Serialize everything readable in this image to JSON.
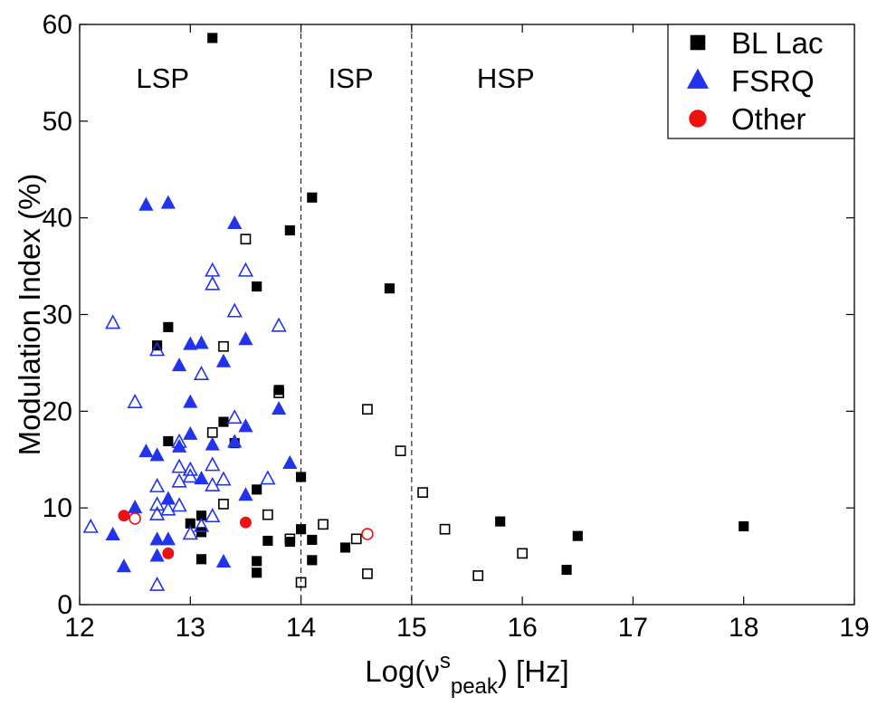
{
  "chart_data": {
    "type": "scatter",
    "xlabel": "Log(ν",
    "xlabel_sup": "s",
    "xlabel_sub": "peak",
    "xlabel_unit": ") [Hz]",
    "ylabel": "Modulation Index (%)",
    "xlim": [
      12,
      19
    ],
    "ylim": [
      0,
      60
    ],
    "xticks": [
      "12",
      "13",
      "14",
      "15",
      "16",
      "17",
      "18",
      "19"
    ],
    "yticks": [
      "0",
      "10",
      "20",
      "30",
      "40",
      "50",
      "60"
    ],
    "vlines": [
      14,
      15
    ],
    "regions": [
      {
        "label": "LSP",
        "x": 12.75,
        "y": 54.5
      },
      {
        "label": "ISP",
        "x": 14.45,
        "y": 54.5
      },
      {
        "label": "HSP",
        "x": 15.85,
        "y": 54.5
      }
    ],
    "legend": [
      {
        "label": "BL Lac",
        "marker": "square",
        "color": "#000000"
      },
      {
        "label": "FSRQ",
        "marker": "triangle",
        "color": "#2233ee"
      },
      {
        "label": "Other",
        "marker": "circle",
        "color": "#ee1111"
      }
    ],
    "series": [
      {
        "name": "BL Lac",
        "marker": "square",
        "color": "#000000",
        "filled": [
          [
            13.2,
            58.6
          ],
          [
            14.1,
            42.1
          ],
          [
            13.9,
            38.7
          ],
          [
            14.8,
            32.7
          ],
          [
            13.6,
            32.9
          ],
          [
            12.8,
            28.7
          ],
          [
            12.7,
            26.8
          ],
          [
            13.8,
            22.2
          ],
          [
            13.3,
            18.9
          ],
          [
            13.4,
            16.7
          ],
          [
            12.8,
            16.9
          ],
          [
            14.0,
            13.2
          ],
          [
            13.6,
            11.9
          ],
          [
            13.1,
            9.2
          ],
          [
            13.0,
            8.4
          ],
          [
            13.1,
            7.5
          ],
          [
            13.1,
            4.7
          ],
          [
            13.6,
            4.5
          ],
          [
            13.6,
            3.3
          ],
          [
            13.7,
            6.6
          ],
          [
            13.9,
            6.5
          ],
          [
            14.0,
            7.8
          ],
          [
            14.1,
            6.7
          ],
          [
            14.1,
            4.6
          ],
          [
            14.4,
            5.9
          ],
          [
            15.8,
            8.6
          ],
          [
            16.5,
            7.1
          ],
          [
            16.4,
            3.6
          ],
          [
            18.0,
            8.1
          ]
        ],
        "open": [
          [
            13.5,
            37.8
          ],
          [
            13.3,
            26.7
          ],
          [
            13.8,
            21.9
          ],
          [
            13.2,
            17.8
          ],
          [
            13.3,
            10.4
          ],
          [
            13.7,
            9.3
          ],
          [
            13.9,
            6.8
          ],
          [
            14.0,
            2.3
          ],
          [
            14.2,
            8.3
          ],
          [
            14.5,
            6.8
          ],
          [
            14.6,
            20.2
          ],
          [
            14.6,
            3.2
          ],
          [
            14.9,
            15.9
          ],
          [
            15.1,
            11.6
          ],
          [
            15.3,
            7.8
          ],
          [
            15.6,
            3.0
          ],
          [
            16.0,
            5.3
          ]
        ]
      },
      {
        "name": "FSRQ",
        "marker": "triangle",
        "color": "#2233ee",
        "filled": [
          [
            12.6,
            41.3
          ],
          [
            12.8,
            41.5
          ],
          [
            13.4,
            39.4
          ],
          [
            12.9,
            24.7
          ],
          [
            13.0,
            26.9
          ],
          [
            13.1,
            27.0
          ],
          [
            13.3,
            25.1
          ],
          [
            13.5,
            27.4
          ],
          [
            13.8,
            20.2
          ],
          [
            13.0,
            20.9
          ],
          [
            13.5,
            18.4
          ],
          [
            12.6,
            15.8
          ],
          [
            12.7,
            15.4
          ],
          [
            12.9,
            16.3
          ],
          [
            13.0,
            17.6
          ],
          [
            13.2,
            16.5
          ],
          [
            13.4,
            16.8
          ],
          [
            13.9,
            14.6
          ],
          [
            13.1,
            13.0
          ],
          [
            13.5,
            11.3
          ],
          [
            12.5,
            10.0
          ],
          [
            12.8,
            10.9
          ],
          [
            12.7,
            6.7
          ],
          [
            12.8,
            6.7
          ],
          [
            12.7,
            5.0
          ],
          [
            12.3,
            7.2
          ],
          [
            12.4,
            3.9
          ],
          [
            13.3,
            4.4
          ]
        ],
        "open": [
          [
            12.3,
            29.1
          ],
          [
            12.5,
            20.9
          ],
          [
            12.7,
            26.3
          ],
          [
            13.1,
            23.8
          ],
          [
            13.2,
            34.5
          ],
          [
            13.2,
            33.1
          ],
          [
            13.5,
            34.5
          ],
          [
            13.4,
            30.3
          ],
          [
            13.8,
            28.8
          ],
          [
            13.4,
            19.3
          ],
          [
            13.2,
            14.4
          ],
          [
            12.9,
            16.8
          ],
          [
            12.9,
            14.2
          ],
          [
            12.9,
            12.7
          ],
          [
            13.0,
            13.9
          ],
          [
            13.0,
            13.2
          ],
          [
            13.3,
            12.9
          ],
          [
            13.2,
            12.3
          ],
          [
            13.7,
            13.0
          ],
          [
            12.7,
            12.2
          ],
          [
            12.7,
            10.3
          ],
          [
            12.9,
            10.2
          ],
          [
            12.8,
            9.8
          ],
          [
            12.7,
            9.3
          ],
          [
            13.1,
            8.1
          ],
          [
            13.2,
            9.1
          ],
          [
            13.0,
            7.3
          ],
          [
            12.1,
            8.0
          ],
          [
            12.7,
            2.0
          ]
        ]
      },
      {
        "name": "Other",
        "marker": "circle",
        "color": "#ee1111",
        "filled": [
          [
            12.4,
            9.2
          ],
          [
            13.5,
            8.5
          ],
          [
            12.8,
            5.3
          ]
        ],
        "open": [
          [
            12.5,
            8.9
          ],
          [
            14.6,
            7.3
          ]
        ]
      }
    ]
  }
}
